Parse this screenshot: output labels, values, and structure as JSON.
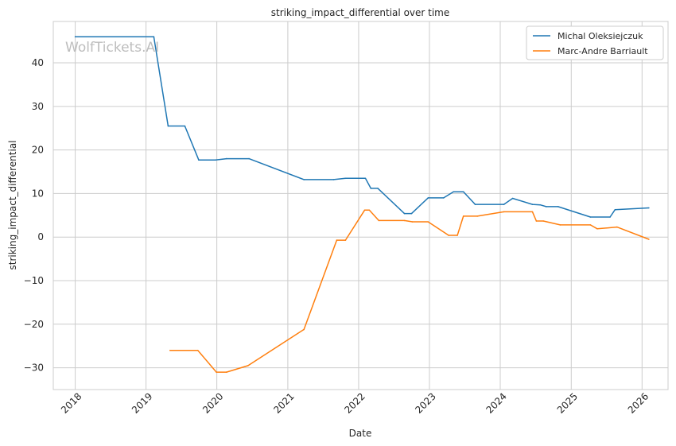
{
  "chart_data": {
    "type": "line",
    "title": "striking_impact_differential over time",
    "xlabel": "Date",
    "ylabel": "striking_impact_differential",
    "watermark": "WolfTickets.AI",
    "x_ticks": [
      "2018",
      "2019",
      "2020",
      "2021",
      "2022",
      "2023",
      "2024",
      "2025",
      "2026"
    ],
    "y_ticks": [
      "−30",
      "−20",
      "−10",
      "0",
      "10",
      "20",
      "30",
      "40"
    ],
    "y_tick_values": [
      -30,
      -20,
      -10,
      0,
      10,
      20,
      30,
      40
    ],
    "xlim": [
      "2017-09-10",
      "2026-05-15"
    ],
    "ylim": [
      -35,
      49.5
    ],
    "grid": true,
    "legend_position": "top-right",
    "series": [
      {
        "name": "Michal Oleksiejczuk",
        "color": "#1f77b4",
        "points": [
          [
            "2018-01-01",
            46.0
          ],
          [
            "2019-02-10",
            46.0
          ],
          [
            "2019-04-25",
            25.5
          ],
          [
            "2019-07-20",
            25.5
          ],
          [
            "2019-09-30",
            17.7
          ],
          [
            "2019-12-25",
            17.7
          ],
          [
            "2020-02-20",
            18.0
          ],
          [
            "2020-06-15",
            18.0
          ],
          [
            "2021-03-25",
            13.2
          ],
          [
            "2021-08-25",
            13.2
          ],
          [
            "2021-10-25",
            13.5
          ],
          [
            "2022-02-05",
            13.5
          ],
          [
            "2022-03-05",
            11.2
          ],
          [
            "2022-04-10",
            11.2
          ],
          [
            "2022-08-25",
            5.4
          ],
          [
            "2022-10-01",
            5.4
          ],
          [
            "2022-12-25",
            9.0
          ],
          [
            "2023-03-15",
            9.0
          ],
          [
            "2023-05-05",
            10.4
          ],
          [
            "2023-06-25",
            10.4
          ],
          [
            "2023-08-25",
            7.5
          ],
          [
            "2024-01-20",
            7.5
          ],
          [
            "2024-03-05",
            8.9
          ],
          [
            "2024-06-15",
            7.5
          ],
          [
            "2024-07-25",
            7.4
          ],
          [
            "2024-08-25",
            7.0
          ],
          [
            "2024-10-25",
            7.0
          ],
          [
            "2025-04-10",
            4.6
          ],
          [
            "2025-07-20",
            4.6
          ],
          [
            "2025-08-15",
            6.3
          ],
          [
            "2026-02-05",
            6.7
          ]
        ]
      },
      {
        "name": "Marc-Andre Barriault",
        "color": "#ff7f0e",
        "points": [
          [
            "2019-05-05",
            -26.0
          ],
          [
            "2019-09-25",
            -26.0
          ],
          [
            "2019-12-30",
            -31.0
          ],
          [
            "2020-02-20",
            -31.0
          ],
          [
            "2020-06-10",
            -29.5
          ],
          [
            "2021-03-25",
            -21.2
          ],
          [
            "2021-09-10",
            -0.7
          ],
          [
            "2021-10-25",
            -0.7
          ],
          [
            "2022-02-01",
            6.2
          ],
          [
            "2022-02-25",
            6.2
          ],
          [
            "2022-04-15",
            3.8
          ],
          [
            "2022-08-25",
            3.8
          ],
          [
            "2022-10-05",
            3.5
          ],
          [
            "2022-12-25",
            3.5
          ],
          [
            "2023-04-10",
            0.4
          ],
          [
            "2023-05-25",
            0.4
          ],
          [
            "2023-06-25",
            4.8
          ],
          [
            "2023-09-05",
            4.8
          ],
          [
            "2024-01-20",
            5.8
          ],
          [
            "2024-06-15",
            5.8
          ],
          [
            "2024-07-05",
            3.7
          ],
          [
            "2024-08-10",
            3.7
          ],
          [
            "2024-11-05",
            2.8
          ],
          [
            "2025-04-10",
            2.8
          ],
          [
            "2025-05-15",
            1.9
          ],
          [
            "2025-08-25",
            2.3
          ],
          [
            "2026-02-05",
            -0.5
          ]
        ]
      }
    ]
  }
}
